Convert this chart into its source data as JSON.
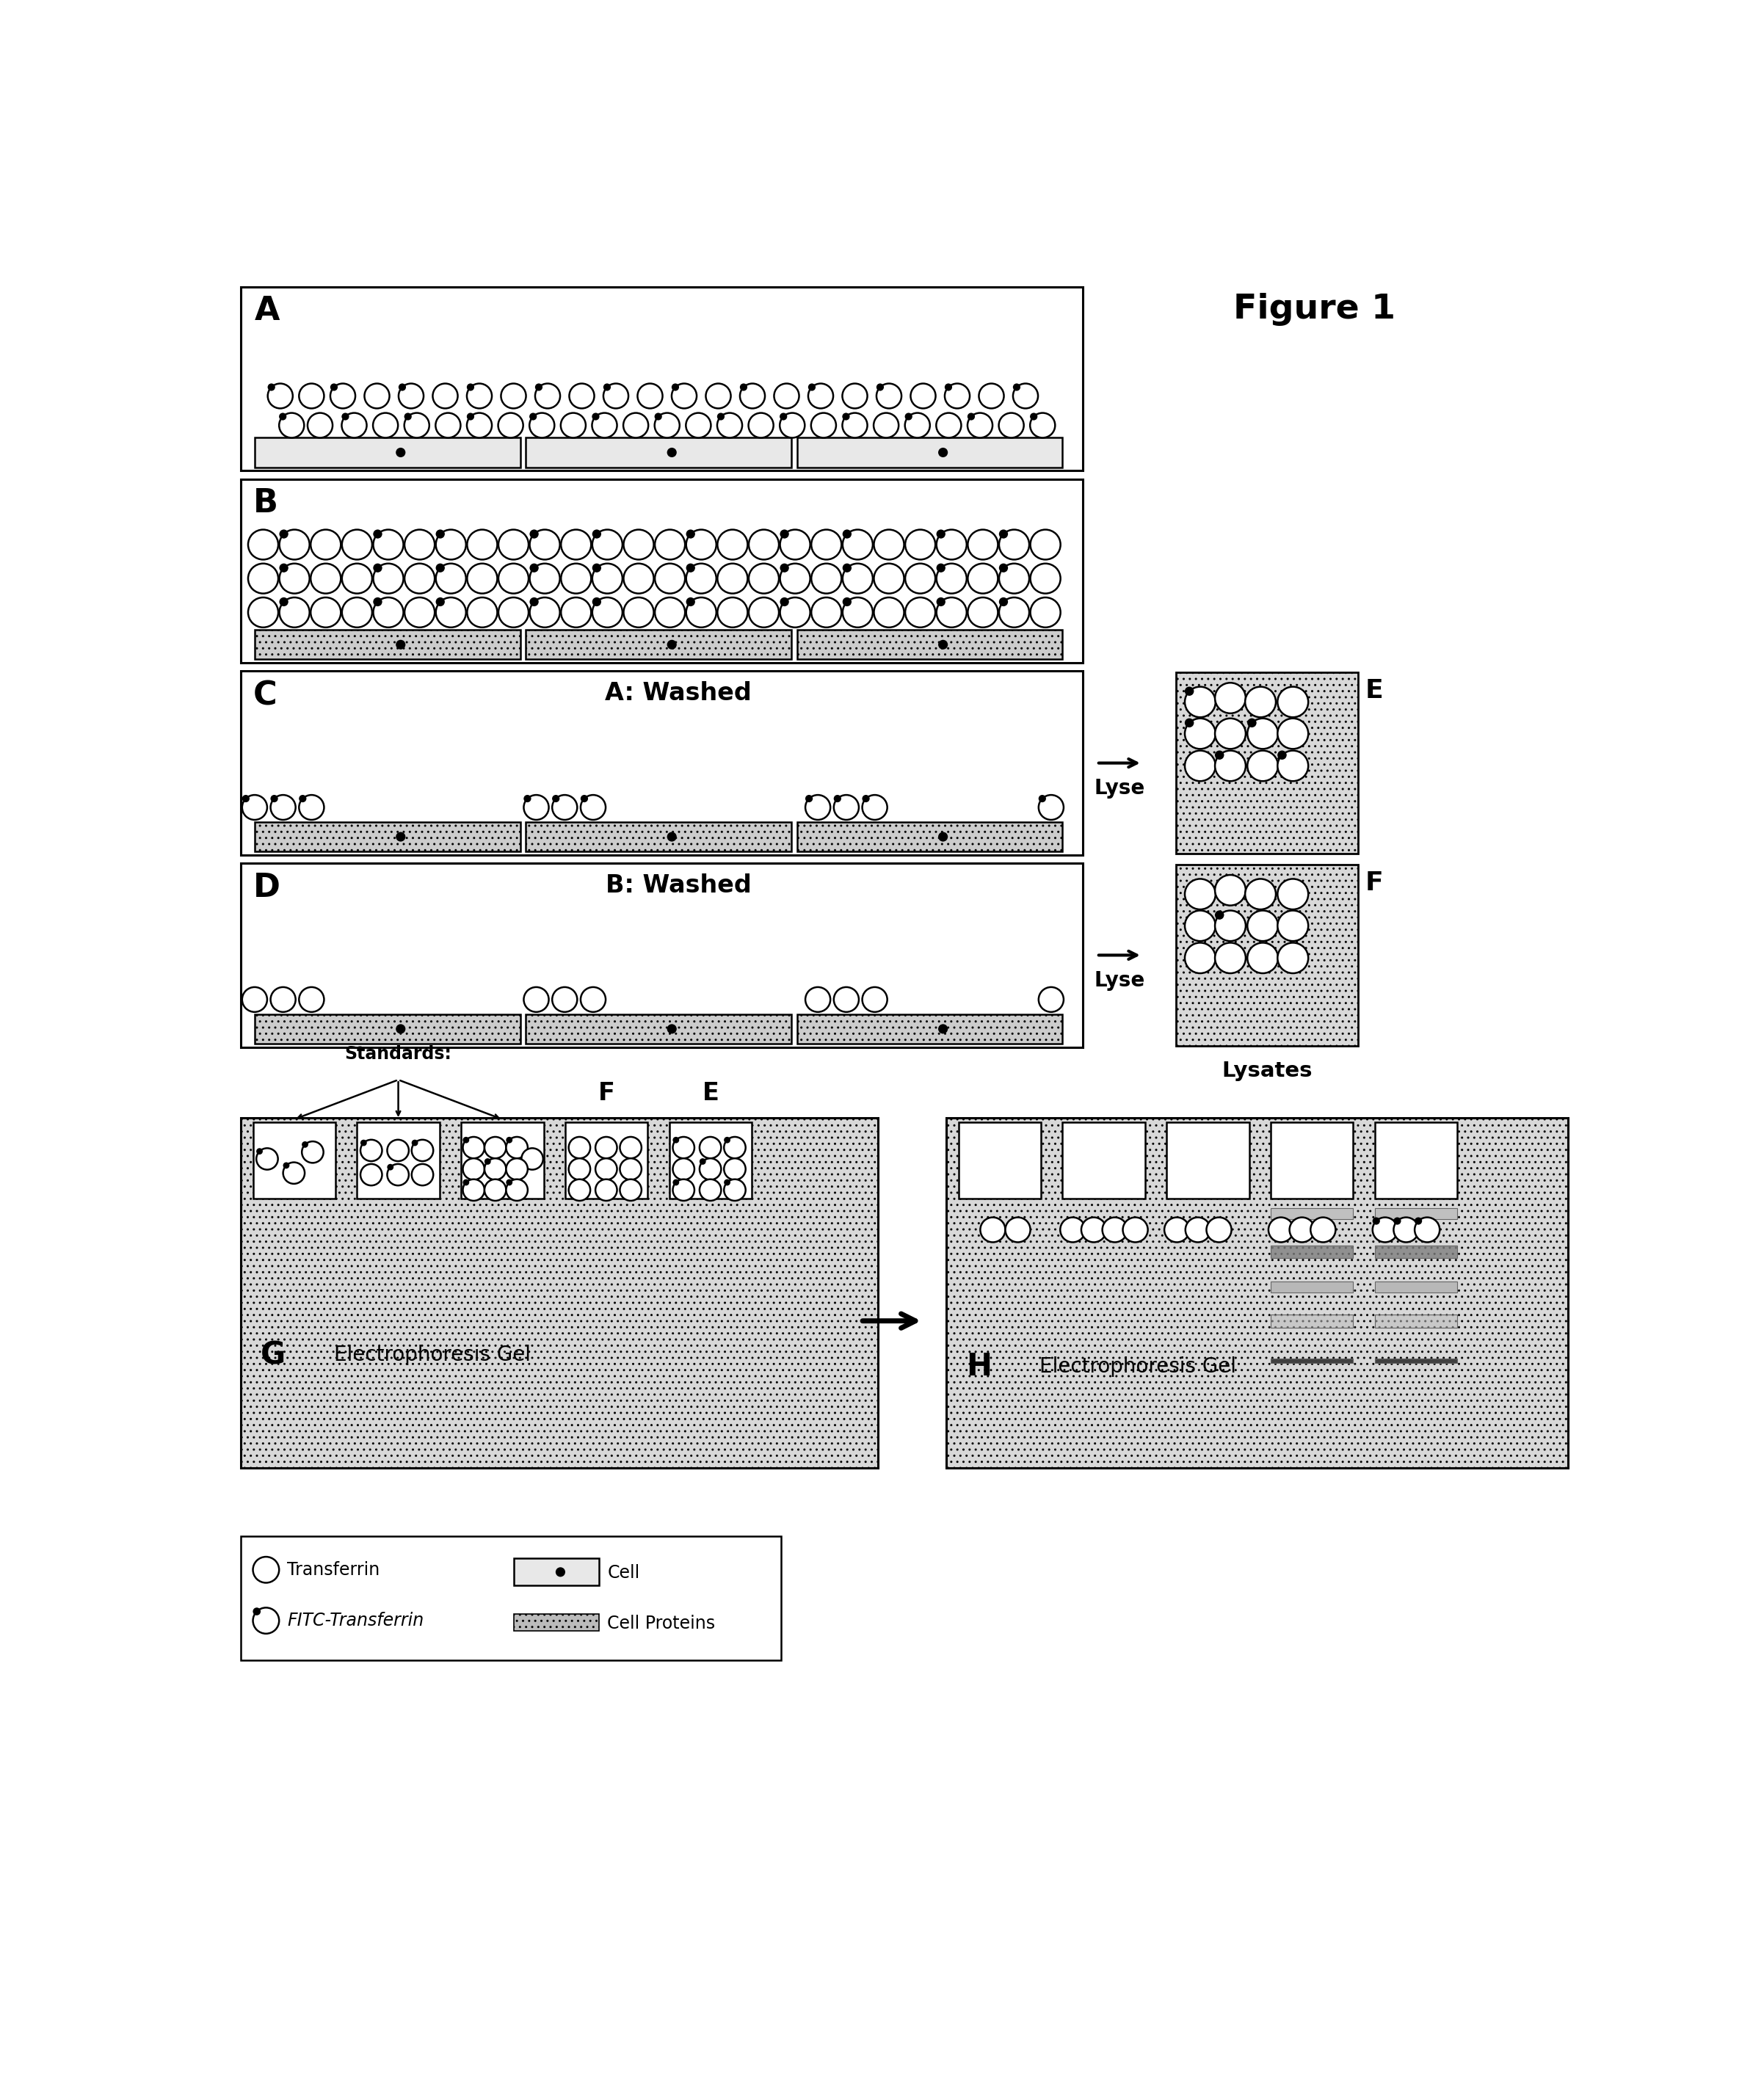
{
  "figure_title": "Figure 1",
  "label_A": "A",
  "label_B": "B",
  "label_C": "C",
  "label_D": "D",
  "label_E": "E",
  "label_F": "F",
  "label_G": "G",
  "label_H": "H",
  "text_A_washed": "A: Washed",
  "text_B_washed": "B: Washed",
  "text_standards": "Standards:",
  "text_lyse": "Lyse",
  "text_lysates": "Lysates",
  "text_elec_G": "Electrophoresis Gel",
  "text_elec_H": "Electrophoresis Gel",
  "leg_transferrin": "Transferrin",
  "leg_fitc": "FITC-Transferrin",
  "leg_cell": "Cell",
  "leg_proteins": "Cell Proteins",
  "stipple_color": "#cccccc",
  "white": "#ffffff",
  "black": "#000000",
  "band_gray1": "#aaaaaa",
  "band_gray2": "#bbbbbb",
  "band_gray3": "#999999",
  "band_gray4": "#c8c8c8"
}
